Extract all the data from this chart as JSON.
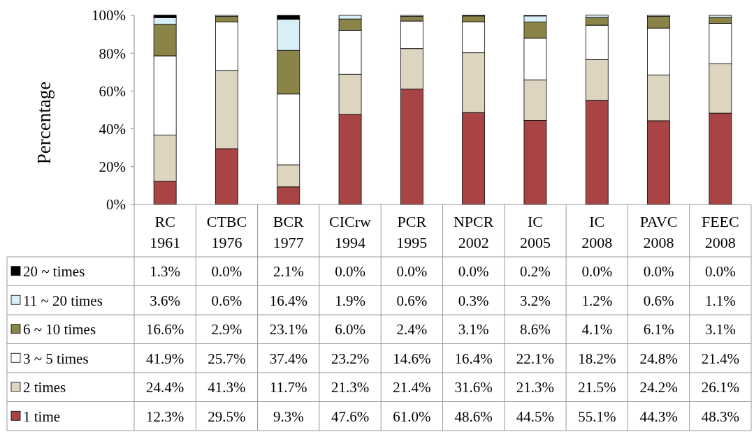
{
  "chart_data": {
    "type": "bar",
    "stacked": true,
    "ylabel": "Percentage",
    "categories": [
      "RC 1961",
      "CTBC 1976",
      "BCR 1977",
      "CICrw 1994",
      "PCR 1995",
      "NPCR 2002",
      "IC 2005",
      "IC 2008",
      "PAVC 2008",
      "FEEC 2008"
    ],
    "ylim": [
      0,
      100
    ],
    "yticks": [
      {
        "value": 0,
        "label": "0%"
      },
      {
        "value": 20,
        "label": "20%"
      },
      {
        "value": 40,
        "label": "40%"
      },
      {
        "value": 60,
        "label": "60%"
      },
      {
        "value": 80,
        "label": "80%"
      },
      {
        "value": 100,
        "label": "100%"
      }
    ],
    "legend": "bottom",
    "series": [
      {
        "name": "1 time",
        "color": "#a84444",
        "values": [
          12.3,
          29.5,
          9.3,
          47.6,
          61.0,
          48.6,
          44.5,
          55.1,
          44.3,
          48.3
        ],
        "value_labels": [
          "12.3%",
          "29.5%",
          "9.3%",
          "47.6%",
          "61.0%",
          "48.6%",
          "44.5%",
          "55.1%",
          "44.3%",
          "48.3%"
        ]
      },
      {
        "name": "2 times",
        "color": "#ddd5c0",
        "values": [
          24.4,
          41.3,
          11.7,
          21.3,
          21.4,
          31.6,
          21.3,
          21.5,
          24.2,
          26.1
        ],
        "value_labels": [
          "24.4%",
          "41.3%",
          "11.7%",
          "21.3%",
          "21.4%",
          "31.6%",
          "21.3%",
          "21.5%",
          "24.2%",
          "26.1%"
        ]
      },
      {
        "name": "3 ~ 5 times",
        "color": "#ffffff",
        "values": [
          41.9,
          25.7,
          37.4,
          23.2,
          14.6,
          16.4,
          22.1,
          18.2,
          24.8,
          21.4
        ],
        "value_labels": [
          "41.9%",
          "25.7%",
          "37.4%",
          "23.2%",
          "14.6%",
          "16.4%",
          "22.1%",
          "18.2%",
          "24.8%",
          "21.4%"
        ]
      },
      {
        "name": "6 ~ 10 times",
        "color": "#8b8449",
        "values": [
          16.6,
          2.9,
          23.1,
          6.0,
          2.4,
          3.1,
          8.6,
          4.1,
          6.1,
          3.1
        ],
        "value_labels": [
          "16.6%",
          "2.9%",
          "23.1%",
          "6.0%",
          "2.4%",
          "3.1%",
          "8.6%",
          "4.1%",
          "6.1%",
          "3.1%"
        ]
      },
      {
        "name": "11 ~ 20 times",
        "color": "#d9eef6",
        "values": [
          3.6,
          0.6,
          16.4,
          1.9,
          0.6,
          0.3,
          3.2,
          1.2,
          0.6,
          1.1
        ],
        "value_labels": [
          "3.6%",
          "0.6%",
          "16.4%",
          "1.9%",
          "0.6%",
          "0.3%",
          "3.2%",
          "1.2%",
          "0.6%",
          "1.1%"
        ]
      },
      {
        "name": "20 ~ times",
        "color": "#000000",
        "values": [
          1.3,
          0.0,
          2.1,
          0.0,
          0.0,
          0.0,
          0.2,
          0.0,
          0.0,
          0.0
        ],
        "value_labels": [
          "1.3%",
          "0.0%",
          "2.1%",
          "0.0%",
          "0.0%",
          "0.0%",
          "0.2%",
          "0.0%",
          "0.0%",
          "0.0%"
        ]
      }
    ]
  }
}
